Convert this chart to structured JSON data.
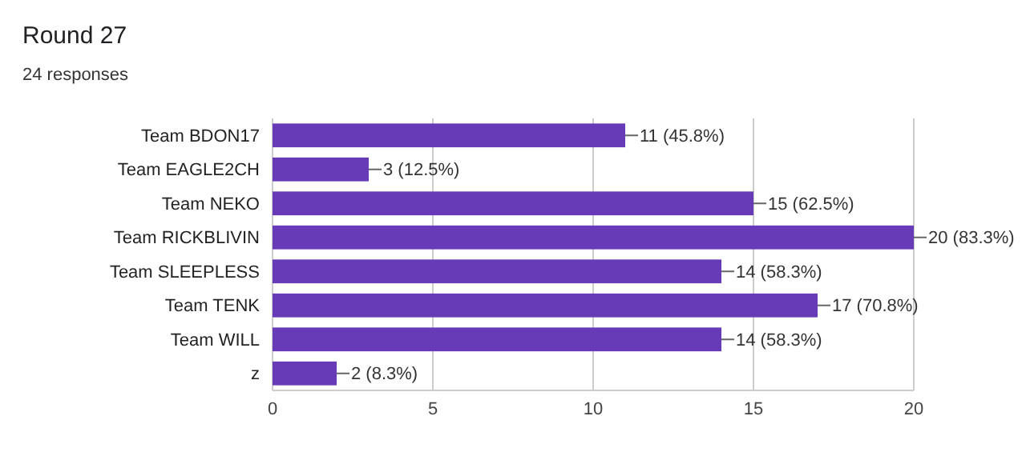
{
  "chart_data": {
    "type": "bar",
    "orientation": "horizontal",
    "title": "Round 27",
    "subtitle": "24 responses",
    "categories": [
      "Team BDON17",
      "Team EAGLE2CH",
      "Team NEKO",
      "Team RICKBLIVIN",
      "Team SLEEPLESS",
      "Team TENK",
      "Team WILL",
      "z"
    ],
    "values": [
      11,
      3,
      15,
      20,
      14,
      17,
      14,
      2
    ],
    "value_labels": [
      "11 (45.8%)",
      "3 (12.5%)",
      "15 (62.5%)",
      "20 (83.3%)",
      "14 (58.3%)",
      "17 (70.8%)",
      "14 (58.3%)",
      "2 (8.3%)"
    ],
    "color": "#673ab7",
    "xlim": [
      0,
      20
    ],
    "xticks": [
      0,
      5,
      10,
      15,
      20
    ],
    "grid": "x"
  }
}
